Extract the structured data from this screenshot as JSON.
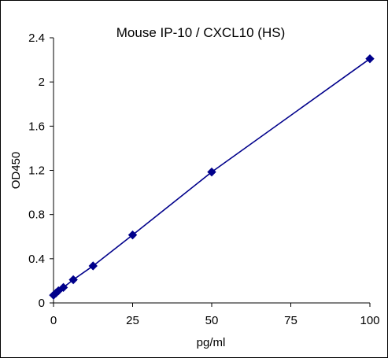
{
  "chart_data": {
    "type": "scatter",
    "title": "Mouse IP-10 / CXCL10 (HS)",
    "xlabel": "pg/ml",
    "ylabel": "OD450",
    "xlim": [
      0,
      100
    ],
    "ylim": [
      0,
      2.4
    ],
    "xticks": [
      0,
      25,
      50,
      75,
      100
    ],
    "yticks": [
      0,
      0.4,
      0.8,
      1.2,
      1.6,
      2,
      2.4
    ],
    "xtick_labels": [
      "0",
      "25",
      "50",
      "75",
      "100"
    ],
    "ytick_labels": [
      "0",
      "0.4",
      "0.8",
      "1.2",
      "1.6",
      "2",
      "2.4"
    ],
    "grid": false,
    "legend": "none",
    "series": [
      {
        "color": "#00008B",
        "marker": "diamond",
        "line": true,
        "x": [
          0,
          0.78,
          1.56,
          3.125,
          6.25,
          12.5,
          25,
          50,
          100
        ],
        "y": [
          0.07,
          0.09,
          0.11,
          0.14,
          0.21,
          0.335,
          0.615,
          1.185,
          2.21
        ]
      }
    ]
  }
}
